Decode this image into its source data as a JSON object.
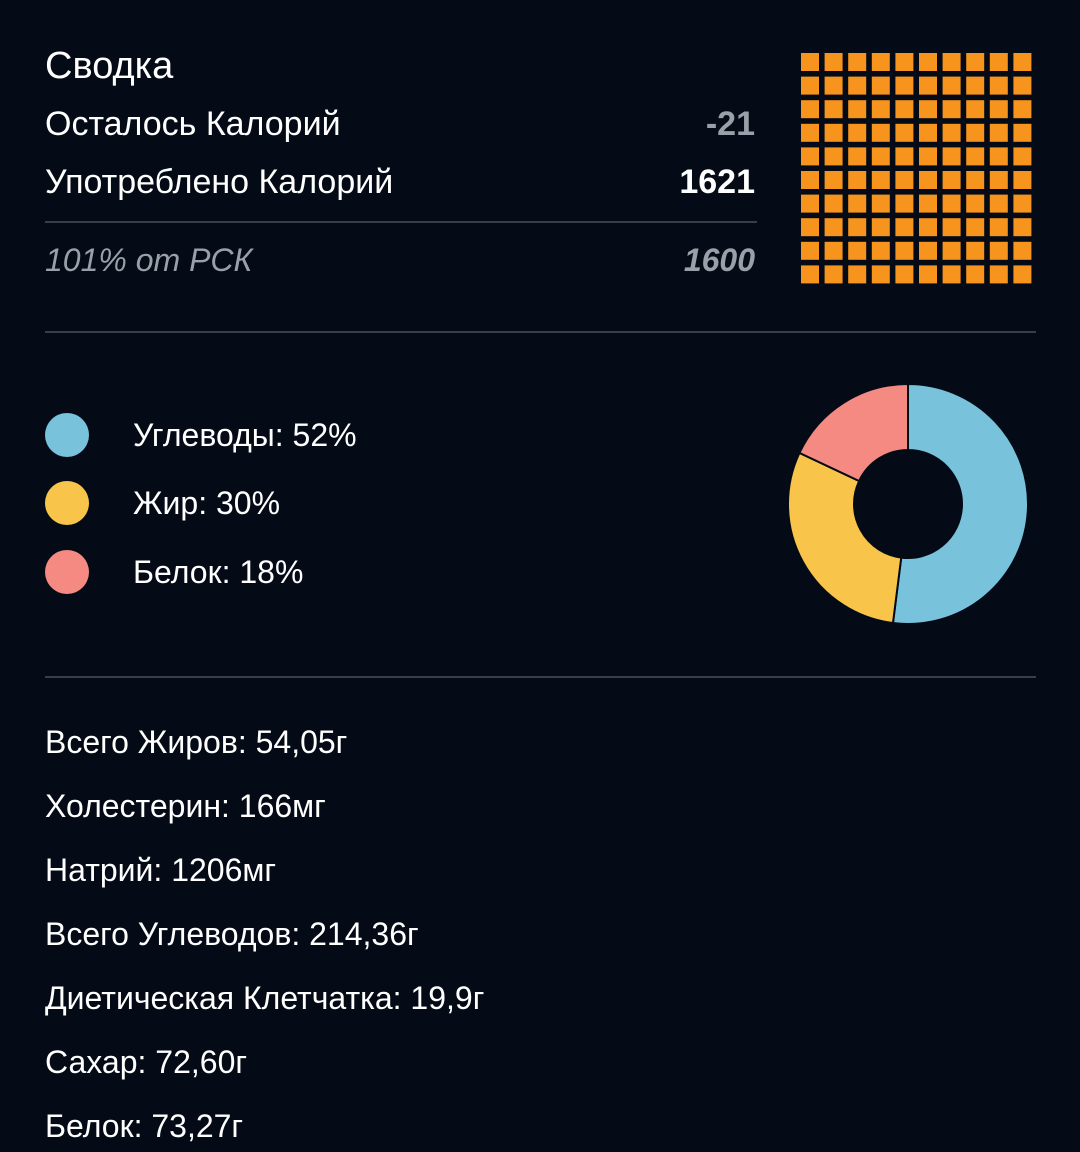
{
  "summary": {
    "title": "Сводка",
    "remaining_label": "Осталось Калорий",
    "remaining_value": "-21",
    "consumed_label": "Употреблено Калорий",
    "consumed_value": "1621",
    "rdi_label": "101% от РСК",
    "rdi_value": "1600",
    "grid_fill_fraction": 1.0,
    "grid_color": "#f7941d"
  },
  "macros": {
    "items": [
      {
        "label": "Углеводы: 52%",
        "percent": 52,
        "color": "#78c2dc"
      },
      {
        "label": "Жир: 30%",
        "percent": 30,
        "color": "#f8c54a"
      },
      {
        "label": "Белок: 18%",
        "percent": 18,
        "color": "#f48a82"
      }
    ]
  },
  "nutrients": [
    "Всего Жиров: 54,05г",
    "Холестерин: 166мг",
    "Натрий: 1206мг",
    "Всего Углеводов: 214,36г",
    "Диетическая Клетчатка: 19,9г",
    "Сахар: 72,60г",
    "Белок: 73,27г"
  ]
}
